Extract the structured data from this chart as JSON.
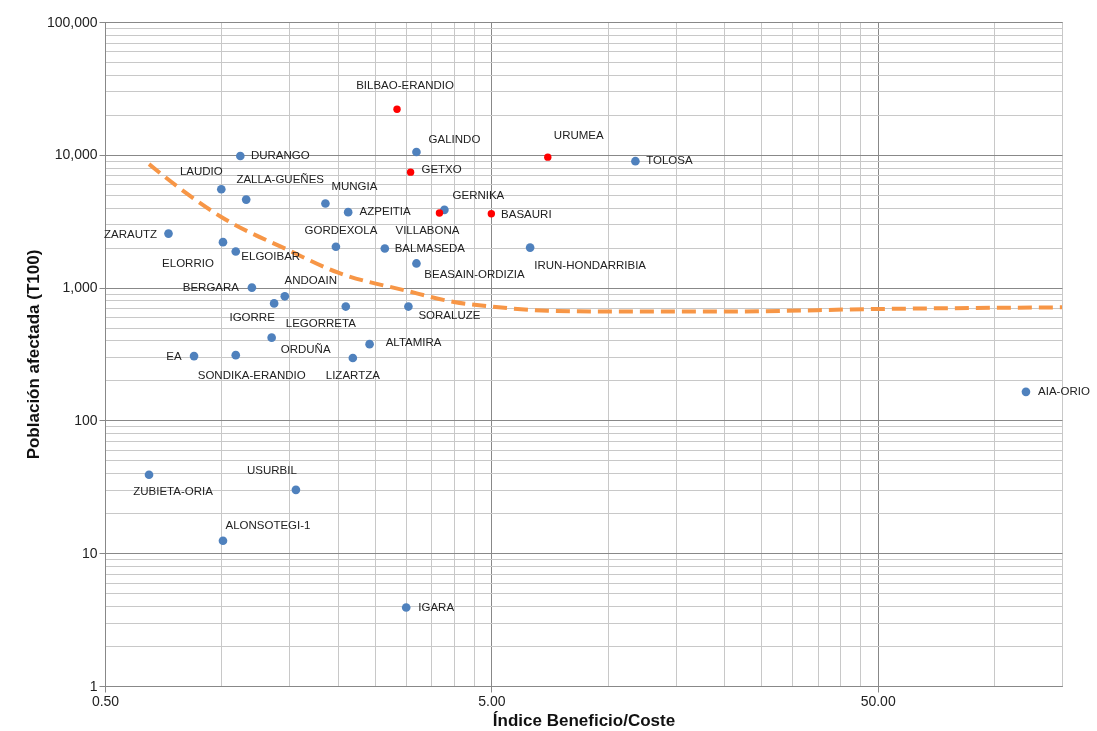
{
  "chart_data": {
    "type": "scatter",
    "xlabel": "Índice Beneficio/Coste",
    "ylabel": "Población afectada (T100)",
    "log": "xy",
    "grid": true,
    "marker": "circle",
    "xlim": [
      0.5,
      150
    ],
    "ylim": [
      1,
      100000
    ],
    "xticks": [
      {
        "value": 0.5,
        "label": "0.50"
      },
      {
        "value": 1,
        "label": null
      },
      {
        "value": 1.5,
        "label": null
      },
      {
        "value": 2,
        "label": null
      },
      {
        "value": 2.5,
        "label": null
      },
      {
        "value": 3,
        "label": null
      },
      {
        "value": 3.5,
        "label": null
      },
      {
        "value": 4,
        "label": null
      },
      {
        "value": 4.5,
        "label": null
      },
      {
        "value": 5,
        "label": "5.00"
      },
      {
        "value": 10,
        "label": null
      },
      {
        "value": 15,
        "label": null
      },
      {
        "value": 20,
        "label": null
      },
      {
        "value": 25,
        "label": null
      },
      {
        "value": 30,
        "label": null
      },
      {
        "value": 35,
        "label": null
      },
      {
        "value": 40,
        "label": null
      },
      {
        "value": 45,
        "label": null
      },
      {
        "value": 50,
        "label": "50.00"
      },
      {
        "value": 100,
        "label": null
      },
      {
        "value": 150,
        "label": null
      }
    ],
    "yticks": [
      1,
      {
        "value": 2,
        "label": null
      },
      {
        "value": 3,
        "label": null
      },
      {
        "value": 4,
        "label": null
      },
      {
        "value": 5,
        "label": null
      },
      {
        "value": 6,
        "label": null
      },
      {
        "value": 7,
        "label": null
      },
      {
        "value": 8,
        "label": null
      },
      {
        "value": 9,
        "label": null
      },
      10,
      {
        "value": 20,
        "label": null
      },
      {
        "value": 30,
        "label": null
      },
      {
        "value": 40,
        "label": null
      },
      {
        "value": 50,
        "label": null
      },
      {
        "value": 60,
        "label": null
      },
      {
        "value": 70,
        "label": null
      },
      {
        "value": 80,
        "label": null
      },
      {
        "value": 90,
        "label": null
      },
      100,
      {
        "value": 200,
        "label": null
      },
      {
        "value": 300,
        "label": null
      },
      {
        "value": 400,
        "label": null
      },
      {
        "value": 500,
        "label": null
      },
      {
        "value": 600,
        "label": null
      },
      {
        "value": 700,
        "label": null
      },
      {
        "value": 800,
        "label": null
      },
      {
        "value": 900,
        "label": null
      },
      {
        "value": 1000,
        "label": "1,000"
      },
      {
        "value": 2000,
        "label": null
      },
      {
        "value": 3000,
        "label": null
      },
      {
        "value": 4000,
        "label": null
      },
      {
        "value": 5000,
        "label": null
      },
      {
        "value": 6000,
        "label": null
      },
      {
        "value": 7000,
        "label": null
      },
      {
        "value": 8000,
        "label": null
      },
      {
        "value": 9000,
        "label": null
      },
      {
        "value": 10000,
        "label": "10,000"
      },
      {
        "value": 20000,
        "label": null
      },
      {
        "value": 30000,
        "label": null
      },
      {
        "value": 40000,
        "label": null
      },
      {
        "value": 50000,
        "label": null
      },
      {
        "value": 60000,
        "label": null
      },
      {
        "value": 70000,
        "label": null
      },
      {
        "value": 80000,
        "label": null
      },
      {
        "value": 90000,
        "label": null
      },
      {
        "value": 100000,
        "label": "100,000"
      }
    ],
    "series": [
      {
        "color": "#4f81bd",
        "x": [
          3.2,
          11.8,
          1.12,
          1.0,
          1.16,
          1.86,
          2.13,
          3.78,
          0.73,
          1.01,
          1.09,
          1.98,
          2.65,
          3.2,
          6.3,
          1.2,
          1.46,
          1.37,
          2.1,
          3.05,
          1.35,
          2.42,
          0.85,
          1.09,
          2.19,
          121,
          0.65,
          1.56,
          1.01,
          3.01
        ],
        "values": [
          10500,
          8950,
          9800,
          5500,
          4600,
          4300,
          3700,
          3850,
          2550,
          2200,
          1870,
          2030,
          1970,
          1520,
          2000,
          1000,
          860,
          760,
          720,
          720,
          420,
          375,
          305,
          310,
          295,
          164,
          39,
          30,
          12.4,
          3.9
        ],
        "value_labels": [
          "GALINDO",
          "TOLOSA",
          "DURANGO",
          "LAUDIO",
          "ZALLA-GUEÑES",
          "MUNGIA",
          "AZPEITIA",
          "GERNIKA",
          "ZARAUTZ",
          "ELORRIO",
          "ELGOIBAR",
          "GORDEXOLA",
          "BALMASEDA",
          "BEASAIN-ORDIZIA",
          "IRUN-HONDARRIBIA",
          "BERGARA",
          "ANDOAIN",
          "IGORRE",
          "LEGORRETA",
          "SORALUZE",
          "ORDUÑA",
          "ALTAMIRA",
          "EA",
          "SONDIKA-ERANDIO",
          "LIZARTZA",
          "AIA-ORIO",
          "ZUBIETA-ORIA",
          "USURBIL",
          "ALONSOTEGI-1",
          "IGARA"
        ]
      },
      {
        "color": "#ff0000",
        "x": [
          2.85,
          3.09,
          7.0,
          3.67,
          5.0
        ],
        "values": [
          22000,
          7400,
          9600,
          3650,
          3600
        ],
        "value_labels": [
          "BILBAO-ERANDIO",
          "GETXO",
          "URUMEA",
          "VILLABONA",
          "BASAURI"
        ]
      },
      {
        "type": "line",
        "color": "#f79646",
        "line_style": "dashed",
        "marker": "none",
        "x": [
          0.65,
          0.8,
          1,
          1.5,
          2,
          3,
          4,
          5,
          7,
          10,
          20,
          50,
          150
        ],
        "values": [
          8500,
          5300,
          3400,
          1900,
          1300,
          950,
          780,
          720,
          670,
          660,
          660,
          690,
          710
        ]
      }
    ]
  }
}
